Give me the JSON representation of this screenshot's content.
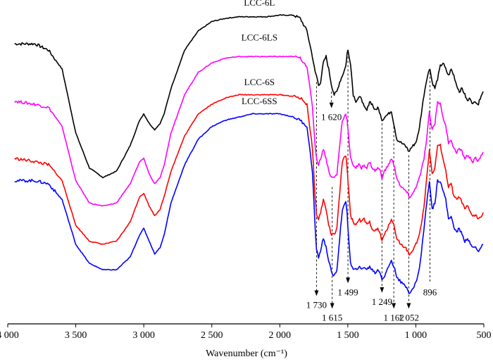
{
  "chart_data": {
    "type": "line",
    "title": "",
    "xlabel": "Wavenumber (cm⁻¹)",
    "ylabel": "",
    "xlim": [
      4000,
      500
    ],
    "x_reversed": true,
    "xticks": [
      4000,
      3500,
      3000,
      2500,
      2000,
      1500,
      1000,
      500
    ],
    "xtick_labels": [
      "4 000",
      "3 500",
      "3 000",
      "2 500",
      "2 000",
      "1 500",
      "1 000",
      "500"
    ],
    "y_units": "arbitrary (stacked, offset spectra)",
    "ylim": [
      0,
      100
    ],
    "grid": false,
    "series": [
      {
        "name": "LCC-6L",
        "color": "#000000",
        "x": [
          3950,
          3800,
          3700,
          3600,
          3500,
          3400,
          3300,
          3200,
          3100,
          3030,
          3000,
          2960,
          2920,
          2880,
          2850,
          2800,
          2700,
          2600,
          2500,
          2400,
          2300,
          2200,
          2100,
          2000,
          1900,
          1850,
          1800,
          1760,
          1740,
          1730,
          1715,
          1700,
          1680,
          1660,
          1640,
          1620,
          1600,
          1580,
          1560,
          1540,
          1515,
          1505,
          1499,
          1480,
          1460,
          1440,
          1420,
          1400,
          1380,
          1360,
          1340,
          1320,
          1300,
          1280,
          1260,
          1249,
          1230,
          1200,
          1180,
          1162,
          1140,
          1110,
          1080,
          1060,
          1052,
          1040,
          1020,
          1000,
          980,
          960,
          940,
          920,
          900,
          896,
          880,
          860,
          840,
          820,
          800,
          780,
          760,
          740,
          720,
          700,
          680,
          660,
          640,
          620,
          600,
          580,
          560,
          540,
          520,
          505
        ],
        "y": [
          88,
          88,
          86,
          80,
          60,
          49,
          46,
          48,
          56,
          64,
          66,
          63,
          61,
          63,
          66,
          74,
          86,
          92,
          95,
          96,
          96.5,
          96.5,
          96.5,
          97,
          97,
          96,
          92,
          84,
          79,
          78,
          75,
          76,
          82,
          84,
          80,
          75,
          72,
          73,
          76,
          78,
          81,
          85,
          86,
          82,
          72,
          70,
          71,
          71,
          68,
          67,
          70,
          69,
          67,
          68,
          66,
          64,
          65,
          66,
          67,
          63,
          58,
          57,
          56,
          55,
          54,
          55,
          56,
          57,
          60,
          66,
          72,
          77,
          80,
          80,
          76,
          74,
          77,
          81,
          82,
          80,
          78,
          80,
          78,
          75,
          73,
          74,
          72,
          70,
          71,
          69,
          70,
          69,
          72,
          73
        ]
      },
      {
        "name": "LCC-6LS",
        "color": "#ff00ff",
        "x": [
          3950,
          3800,
          3700,
          3600,
          3500,
          3400,
          3300,
          3200,
          3100,
          3030,
          3000,
          2960,
          2920,
          2880,
          2850,
          2800,
          2700,
          2600,
          2500,
          2400,
          2300,
          2200,
          2100,
          2000,
          1900,
          1850,
          1800,
          1760,
          1740,
          1730,
          1715,
          1700,
          1680,
          1660,
          1640,
          1620,
          1600,
          1580,
          1560,
          1540,
          1515,
          1505,
          1499,
          1480,
          1460,
          1440,
          1420,
          1400,
          1380,
          1360,
          1340,
          1320,
          1300,
          1280,
          1260,
          1249,
          1230,
          1200,
          1180,
          1162,
          1140,
          1110,
          1080,
          1060,
          1052,
          1040,
          1020,
          1000,
          980,
          960,
          940,
          920,
          900,
          896,
          880,
          860,
          840,
          820,
          800,
          780,
          760,
          740,
          720,
          700,
          680,
          660,
          640,
          620,
          600,
          580,
          560,
          540,
          520,
          505
        ],
        "y": [
          70,
          69,
          68,
          62,
          45,
          38,
          37,
          38,
          44,
          51,
          52,
          47,
          44,
          46,
          50,
          60,
          72,
          79,
          82,
          83.5,
          84,
          84,
          84,
          84,
          84,
          83.5,
          81,
          68,
          56,
          52,
          50,
          52,
          55,
          52,
          48,
          46,
          46,
          47,
          56,
          64,
          66,
          64,
          61,
          52,
          50,
          49,
          50,
          49,
          50,
          49,
          51,
          49,
          48,
          49,
          48,
          46,
          48,
          50,
          52,
          50,
          46,
          43,
          42,
          41,
          40,
          40,
          41,
          43,
          45,
          48,
          52,
          58,
          67,
          65,
          61,
          63,
          70,
          69,
          65,
          62,
          57,
          58,
          55,
          54,
          55,
          54,
          52,
          53,
          52,
          51,
          52,
          51,
          53,
          54
        ]
      },
      {
        "name": "LCC-6S",
        "color": "#ff0000",
        "x": [
          3950,
          3800,
          3700,
          3600,
          3500,
          3400,
          3300,
          3200,
          3100,
          3030,
          3000,
          2960,
          2920,
          2880,
          2850,
          2800,
          2700,
          2600,
          2500,
          2400,
          2300,
          2200,
          2100,
          2000,
          1900,
          1850,
          1800,
          1760,
          1740,
          1730,
          1715,
          1700,
          1680,
          1660,
          1640,
          1620,
          1600,
          1580,
          1560,
          1540,
          1515,
          1505,
          1499,
          1480,
          1460,
          1440,
          1420,
          1400,
          1380,
          1360,
          1340,
          1320,
          1300,
          1280,
          1260,
          1249,
          1230,
          1200,
          1180,
          1162,
          1140,
          1110,
          1080,
          1060,
          1052,
          1040,
          1020,
          1000,
          980,
          960,
          940,
          920,
          900,
          896,
          880,
          860,
          840,
          820,
          800,
          780,
          760,
          740,
          720,
          700,
          680,
          660,
          640,
          620,
          600,
          580,
          560,
          540,
          520,
          505
        ],
        "y": [
          52,
          51,
          50,
          45,
          31,
          26,
          25,
          26,
          32,
          40,
          41,
          37,
          34,
          36,
          40,
          48,
          59,
          66,
          69,
          71,
          72,
          72,
          72,
          72,
          71.5,
          71,
          69,
          55,
          40,
          34,
          33,
          35,
          39,
          36,
          31,
          28,
          28,
          30,
          41,
          51,
          53,
          49,
          45,
          34,
          32,
          31,
          33,
          32,
          33,
          31,
          32,
          30,
          29,
          30,
          28,
          26,
          28,
          31,
          33,
          31,
          27,
          25,
          24,
          23,
          22,
          22,
          23,
          25,
          27,
          31,
          37,
          46,
          55,
          53,
          47,
          49,
          56,
          56,
          52,
          48,
          43,
          44,
          40,
          39,
          40,
          38,
          36,
          37,
          35,
          34,
          34,
          33,
          34,
          35
        ]
      },
      {
        "name": "LCC-6SS",
        "color": "#0000ff",
        "x": [
          3950,
          3800,
          3700,
          3600,
          3500,
          3400,
          3300,
          3200,
          3100,
          3030,
          3000,
          2960,
          2920,
          2880,
          2850,
          2800,
          2700,
          2600,
          2500,
          2400,
          2300,
          2200,
          2100,
          2000,
          1900,
          1850,
          1800,
          1760,
          1740,
          1730,
          1715,
          1700,
          1680,
          1660,
          1640,
          1620,
          1600,
          1580,
          1560,
          1540,
          1515,
          1505,
          1499,
          1480,
          1460,
          1440,
          1420,
          1400,
          1380,
          1360,
          1340,
          1320,
          1300,
          1280,
          1260,
          1249,
          1230,
          1200,
          1180,
          1162,
          1140,
          1110,
          1080,
          1060,
          1052,
          1040,
          1020,
          1000,
          980,
          960,
          940,
          920,
          900,
          896,
          880,
          860,
          840,
          820,
          800,
          780,
          760,
          740,
          720,
          700,
          680,
          660,
          640,
          620,
          600,
          580,
          560,
          540,
          520,
          505
        ],
        "y": [
          45,
          45,
          44,
          39,
          25,
          19,
          17,
          17,
          21,
          28,
          30,
          26,
          22,
          24,
          28,
          38,
          50,
          58,
          62,
          64,
          65,
          66,
          66,
          66,
          65,
          64,
          62,
          48,
          30,
          23,
          21,
          23,
          27,
          24,
          20,
          16,
          15,
          17,
          27,
          36,
          38,
          35,
          30,
          19,
          17,
          17,
          18,
          17,
          18,
          17,
          18,
          17,
          16,
          17,
          16,
          14,
          15,
          18,
          20,
          18,
          15,
          13,
          12,
          11,
          10,
          10,
          11,
          13,
          16,
          22,
          30,
          38,
          45,
          43,
          36,
          38,
          45,
          45,
          42,
          39,
          33,
          34,
          30,
          29,
          30,
          28,
          26,
          27,
          25,
          24,
          24,
          23,
          24,
          25
        ]
      }
    ],
    "series_labels": [
      {
        "text": "LCC-6L",
        "x": 2150,
        "y": 100
      },
      {
        "text": "LCC-6LS",
        "x": 2150,
        "y": 89
      },
      {
        "text": "LCC-6S",
        "x": 2150,
        "y": 75
      },
      {
        "text": "LCC-6SS",
        "x": 2150,
        "y": 69
      }
    ],
    "annotations": [
      {
        "label": "1 730",
        "wavenumber": 1730,
        "y_top": 76,
        "y_bottom": 9,
        "direction": "down",
        "label_y": 5
      },
      {
        "label": "1 620",
        "wavenumber": 1620,
        "y_top": 73,
        "y_bottom": 68,
        "direction": "down",
        "label_y": 64
      },
      {
        "label": "1 615",
        "wavenumber": 1615,
        "y_top": 43,
        "y_bottom": 5,
        "direction": "down",
        "label_y": 1
      },
      {
        "label": "1 499",
        "wavenumber": 1499,
        "y_top": 84,
        "y_bottom": 13,
        "direction": "down",
        "label_y": 9
      },
      {
        "label": "1 249",
        "wavenumber": 1249,
        "y_top": 63,
        "y_bottom": 10,
        "direction": "down",
        "label_y": 6
      },
      {
        "label": "1 162",
        "wavenumber": 1162,
        "y_top": 62,
        "y_bottom": 5,
        "direction": "down",
        "label_y": 1
      },
      {
        "label": "1 052",
        "wavenumber": 1052,
        "y_top": 53,
        "y_bottom": 5,
        "direction": "down",
        "label_y": 1
      },
      {
        "label": "896",
        "wavenumber": 896,
        "y_top": 79,
        "y_bottom": 13,
        "direction": "none",
        "label_y": 9
      }
    ]
  }
}
